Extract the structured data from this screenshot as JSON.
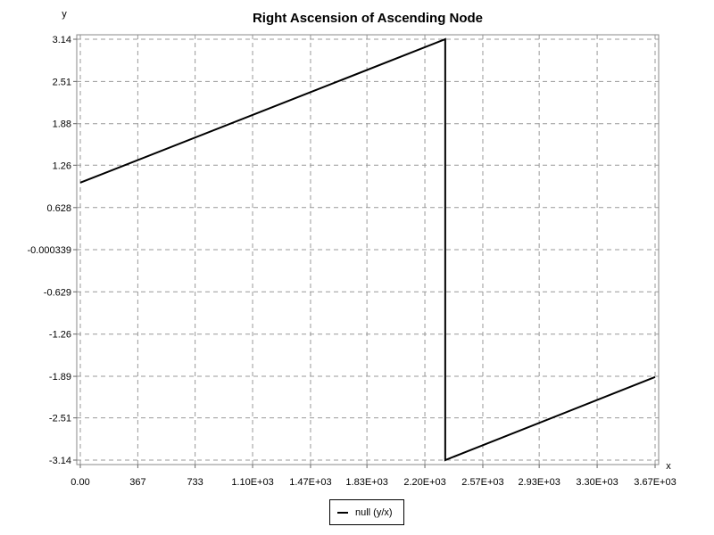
{
  "chart_data": {
    "type": "line",
    "title": "Right Ascension of Ascending Node",
    "xlabel": "x",
    "ylabel": "y",
    "xlim": [
      0,
      3670
    ],
    "ylim": [
      -3.14,
      3.14
    ],
    "x_ticks": [
      0,
      367,
      733,
      1100,
      1470,
      1830,
      2200,
      2570,
      2930,
      3300,
      3670
    ],
    "x_tick_labels": [
      "0.00",
      "367",
      "733",
      "1.10E+03",
      "1.47E+03",
      "1.83E+03",
      "2.20E+03",
      "2.57E+03",
      "2.93E+03",
      "3.30E+03",
      "3.67E+03"
    ],
    "y_ticks": [
      3.14,
      2.51,
      1.88,
      1.26,
      0.628,
      -0.000339,
      -0.629,
      -1.26,
      -1.89,
      -2.51,
      -3.14
    ],
    "y_tick_labels": [
      "3.14",
      "2.51",
      "1.88",
      "1.26",
      "0.628",
      "-0.000339",
      "-0.629",
      "-1.26",
      "-1.89",
      "-2.51",
      "-3.14"
    ],
    "grid": true,
    "legend_position": "bottom-center",
    "series": [
      {
        "name": "null (y/x)",
        "color": "#000000",
        "x": [
          0,
          2330,
          2330,
          3670
        ],
        "y": [
          1.0,
          3.14,
          -3.14,
          -1.9
        ]
      }
    ]
  }
}
